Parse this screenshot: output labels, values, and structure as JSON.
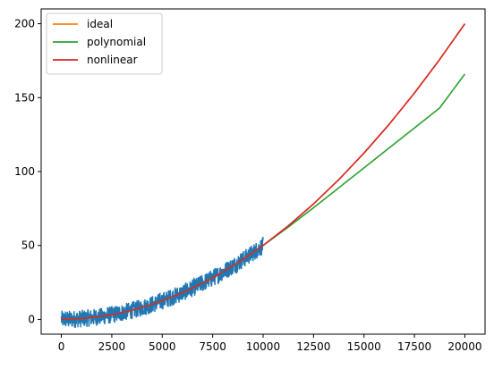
{
  "chart_data": {
    "type": "line",
    "title": "",
    "xlabel": "",
    "ylabel": "",
    "xlim": [
      -1000,
      21000
    ],
    "ylim": [
      -10,
      210
    ],
    "grid": false,
    "legend_position": "top-left",
    "x_ticks": [
      0,
      2500,
      5000,
      7500,
      10000,
      12500,
      15000,
      17500,
      20000
    ],
    "y_ticks": [
      0,
      50,
      100,
      150,
      200
    ],
    "noisy_data": {
      "color": "#1f77b4",
      "x_range": [
        0,
        10000
      ],
      "function": "y = 5e-7 * x^2 + noise",
      "noise_amplitude": 6
    },
    "series": [
      {
        "name": "ideal",
        "color": "#ff7f0e",
        "x": [
          0,
          1250,
          2500,
          3750,
          5000,
          6250,
          7500,
          8750,
          10000,
          11250,
          12500,
          13750,
          15000,
          16250,
          17500,
          18750,
          20000
        ],
        "y": [
          0,
          0.8,
          3.1,
          7.0,
          12.5,
          19.5,
          28.1,
          38.3,
          50.0,
          63.3,
          78.1,
          94.5,
          112.5,
          132.0,
          153.1,
          175.8,
          200.0
        ]
      },
      {
        "name": "polynomial",
        "color": "#2ca02c",
        "x": [
          0,
          1250,
          2500,
          3750,
          5000,
          6250,
          7500,
          8750,
          10000,
          11250,
          12500,
          13750,
          15000,
          16250,
          17500,
          18750,
          20000
        ],
        "y": [
          0,
          0.8,
          3.1,
          7.0,
          12.5,
          19.5,
          28.1,
          38.3,
          50.0,
          62.5,
          75.5,
          89.0,
          102.5,
          116.0,
          129.5,
          143.0,
          166.0
        ]
      },
      {
        "name": "nonlinear",
        "color": "#d62728",
        "x": [
          0,
          1250,
          2500,
          3750,
          5000,
          6250,
          7500,
          8750,
          10000,
          11250,
          12500,
          13750,
          15000,
          16250,
          17500,
          18750,
          20000
        ],
        "y": [
          0,
          0.8,
          3.1,
          7.0,
          12.5,
          19.5,
          28.1,
          38.3,
          50.0,
          63.3,
          78.1,
          94.5,
          112.5,
          132.0,
          153.1,
          175.8,
          200.0
        ]
      }
    ]
  }
}
